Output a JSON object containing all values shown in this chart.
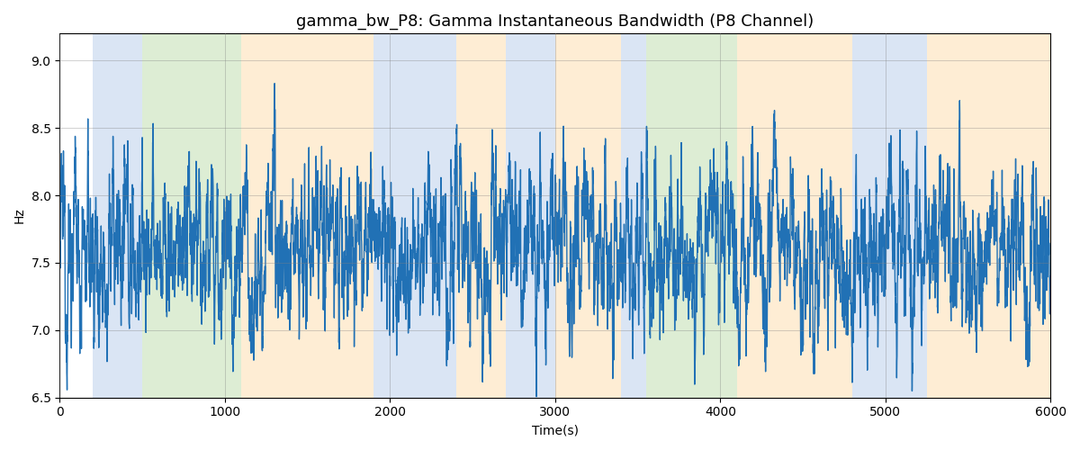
{
  "title": "gamma_bw_P8: Gamma Instantaneous Bandwidth (P8 Channel)",
  "xlabel": "Time(s)",
  "ylabel": "Hz",
  "xlim": [
    0,
    6000
  ],
  "ylim": [
    6.5,
    9.2
  ],
  "line_color": "#2171b5",
  "line_width": 1.0,
  "background_bands": [
    {
      "xmin": 200,
      "xmax": 500,
      "color": "#aec6e8"
    },
    {
      "xmin": 500,
      "xmax": 1100,
      "color": "#b5d9a1"
    },
    {
      "xmin": 1100,
      "xmax": 1900,
      "color": "#fdd9a0"
    },
    {
      "xmin": 1900,
      "xmax": 2400,
      "color": "#aec6e8"
    },
    {
      "xmin": 2400,
      "xmax": 2700,
      "color": "#fdd9a0"
    },
    {
      "xmin": 2700,
      "xmax": 3000,
      "color": "#aec6e8"
    },
    {
      "xmin": 3000,
      "xmax": 3400,
      "color": "#fdd9a0"
    },
    {
      "xmin": 3400,
      "xmax": 3550,
      "color": "#aec6e8"
    },
    {
      "xmin": 3550,
      "xmax": 4100,
      "color": "#b5d9a1"
    },
    {
      "xmin": 4100,
      "xmax": 4800,
      "color": "#fdd9a0"
    },
    {
      "xmin": 4800,
      "xmax": 5250,
      "color": "#aec6e8"
    },
    {
      "xmin": 5250,
      "xmax": 6000,
      "color": "#fdd9a0"
    }
  ],
  "band_alpha": 0.45,
  "title_fontsize": 13
}
